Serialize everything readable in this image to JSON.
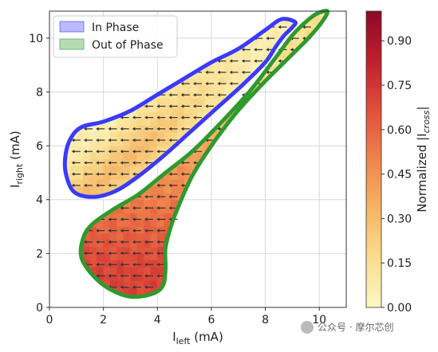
{
  "chart_data": {
    "type": "heatmap",
    "title": "",
    "xlabel": {
      "main": "I",
      "sub": "left",
      "unit": " (mA)"
    },
    "ylabel": {
      "main": "I",
      "sub": "right",
      "unit": " (mA)"
    },
    "xlim": [
      0,
      11
    ],
    "ylim": [
      0,
      11
    ],
    "xticks": [
      0,
      2,
      4,
      6,
      8,
      10
    ],
    "yticks": [
      0,
      2,
      4,
      6,
      8,
      10
    ],
    "grid": true,
    "legend": {
      "placement": "top-left",
      "entries": [
        {
          "label": "In Phase",
          "color": "#3a3aff"
        },
        {
          "label": "Out of Phase",
          "color": "#2e9a2e"
        }
      ]
    },
    "colorbar": {
      "label": {
        "prefix": "Normalized |",
        "main": "I",
        "sub": "cross",
        "suffix": "|"
      },
      "range": [
        0,
        1
      ],
      "ticks": [
        "0.00",
        "0.15",
        "0.30",
        "0.45",
        "0.60",
        "0.75",
        "0.90"
      ],
      "tick_values": [
        0,
        0.15,
        0.3,
        0.45,
        0.6,
        0.75,
        0.9
      ],
      "colormap": [
        "#fcf7c5",
        "#f9dd8e",
        "#f6b466",
        "#ef844c",
        "#e04f3a",
        "#bf1f2e",
        "#8b0a26"
      ]
    },
    "regions": [
      {
        "name": "In Phase",
        "edge_color": "#3a3aff",
        "boundary": [
          [
            8.6,
            10.7
          ],
          [
            9.1,
            10.6
          ],
          [
            9.0,
            10.4
          ],
          [
            8.7,
            10.1
          ],
          [
            8.4,
            9.7
          ],
          [
            8.0,
            9.1
          ],
          [
            7.2,
            8.3
          ],
          [
            6.2,
            7.4
          ],
          [
            5.2,
            6.5
          ],
          [
            4.2,
            5.6
          ],
          [
            3.2,
            4.8
          ],
          [
            2.4,
            4.3
          ],
          [
            1.6,
            4.1
          ],
          [
            0.9,
            4.3
          ],
          [
            0.6,
            5.0
          ],
          [
            0.6,
            5.7
          ],
          [
            0.8,
            6.3
          ],
          [
            1.2,
            6.7
          ],
          [
            2.0,
            6.9
          ],
          [
            3.0,
            7.3
          ],
          [
            4.0,
            7.9
          ],
          [
            5.0,
            8.5
          ],
          [
            6.0,
            9.1
          ],
          [
            7.0,
            9.6
          ],
          [
            8.0,
            10.3
          ]
        ],
        "intensity_range": [
          0.03,
          0.35
        ],
        "field_direction": "left"
      },
      {
        "name": "Out of Phase",
        "edge_color": "#2e9a2e",
        "boundary": [
          [
            9.9,
            10.9
          ],
          [
            10.3,
            11.0
          ],
          [
            10.1,
            10.6
          ],
          [
            9.6,
            10.0
          ],
          [
            8.9,
            9.3
          ],
          [
            7.9,
            8.3
          ],
          [
            6.9,
            7.2
          ],
          [
            6.0,
            6.0
          ],
          [
            5.3,
            4.9
          ],
          [
            4.8,
            3.8
          ],
          [
            4.5,
            3.0
          ],
          [
            4.3,
            2.2
          ],
          [
            4.3,
            1.4
          ],
          [
            4.2,
            0.8
          ],
          [
            3.8,
            0.5
          ],
          [
            3.0,
            0.4
          ],
          [
            2.2,
            0.7
          ],
          [
            1.6,
            1.2
          ],
          [
            1.2,
            1.8
          ],
          [
            1.2,
            2.4
          ],
          [
            1.5,
            3.0
          ],
          [
            2.3,
            3.6
          ],
          [
            3.3,
            4.2
          ],
          [
            4.3,
            5.0
          ],
          [
            5.3,
            5.8
          ],
          [
            6.3,
            6.8
          ],
          [
            7.4,
            8.0
          ],
          [
            8.4,
            9.3
          ],
          [
            9.0,
            10.1
          ],
          [
            9.5,
            10.6
          ]
        ],
        "intensity_range": [
          0.1,
          0.75
        ],
        "field_direction": "left"
      }
    ]
  },
  "watermark": "公众号 · 摩尔芯创"
}
